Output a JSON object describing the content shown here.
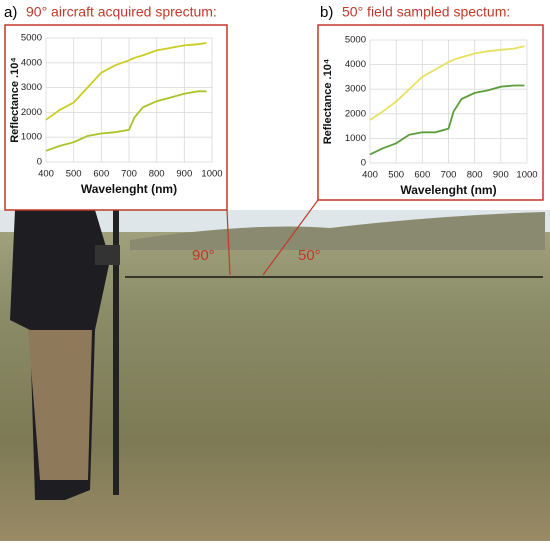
{
  "chart_data": [
    {
      "type": "line",
      "label": "a)",
      "title": "90° aircraft acquired sprectum:",
      "xlabel": "Wavelenght (nm)",
      "ylabel": "Reflectance .10⁴",
      "x": [
        400,
        450,
        500,
        550,
        600,
        650,
        700,
        720,
        750,
        800,
        850,
        900,
        950,
        980
      ],
      "series": [
        {
          "color": "#cccc22",
          "values": [
            1700,
            2100,
            2400,
            3000,
            3600,
            3900,
            4100,
            4200,
            4300,
            4500,
            4600,
            4700,
            4750,
            4800
          ]
        },
        {
          "color": "#a8c428",
          "values": [
            450,
            650,
            800,
            1050,
            1150,
            1200,
            1300,
            1800,
            2200,
            2450,
            2600,
            2750,
            2850,
            2850
          ]
        }
      ],
      "xlim": [
        400,
        1000
      ],
      "xticks": [
        400,
        500,
        600,
        700,
        800,
        900,
        1000
      ],
      "ylim": [
        0,
        5000
      ],
      "yticks": [
        0,
        1000,
        2000,
        3000,
        4000,
        5000
      ],
      "grid": true
    },
    {
      "type": "line",
      "label": "b)",
      "title": "50° field sampled spectum:",
      "xlabel": "Wavelenght (nm)",
      "ylabel": "Reflectance .10⁴",
      "x": [
        400,
        450,
        500,
        550,
        600,
        650,
        700,
        720,
        750,
        800,
        850,
        900,
        950,
        990
      ],
      "series": [
        {
          "color": "#e8e060",
          "values": [
            1750,
            2100,
            2500,
            3000,
            3500,
            3800,
            4100,
            4200,
            4300,
            4450,
            4550,
            4600,
            4650,
            4750
          ]
        },
        {
          "color": "#5c9e3c",
          "values": [
            350,
            600,
            800,
            1150,
            1250,
            1250,
            1400,
            2100,
            2600,
            2850,
            2950,
            3100,
            3150,
            3150
          ]
        }
      ],
      "xlim": [
        400,
        1000
      ],
      "xticks": [
        400,
        500,
        600,
        700,
        800,
        900,
        1000
      ],
      "ylim": [
        0,
        5000
      ],
      "yticks": [
        0,
        1000,
        2000,
        3000,
        4000,
        5000
      ],
      "grid": true
    }
  ],
  "photo_annotations": [
    "90°",
    "50°"
  ]
}
